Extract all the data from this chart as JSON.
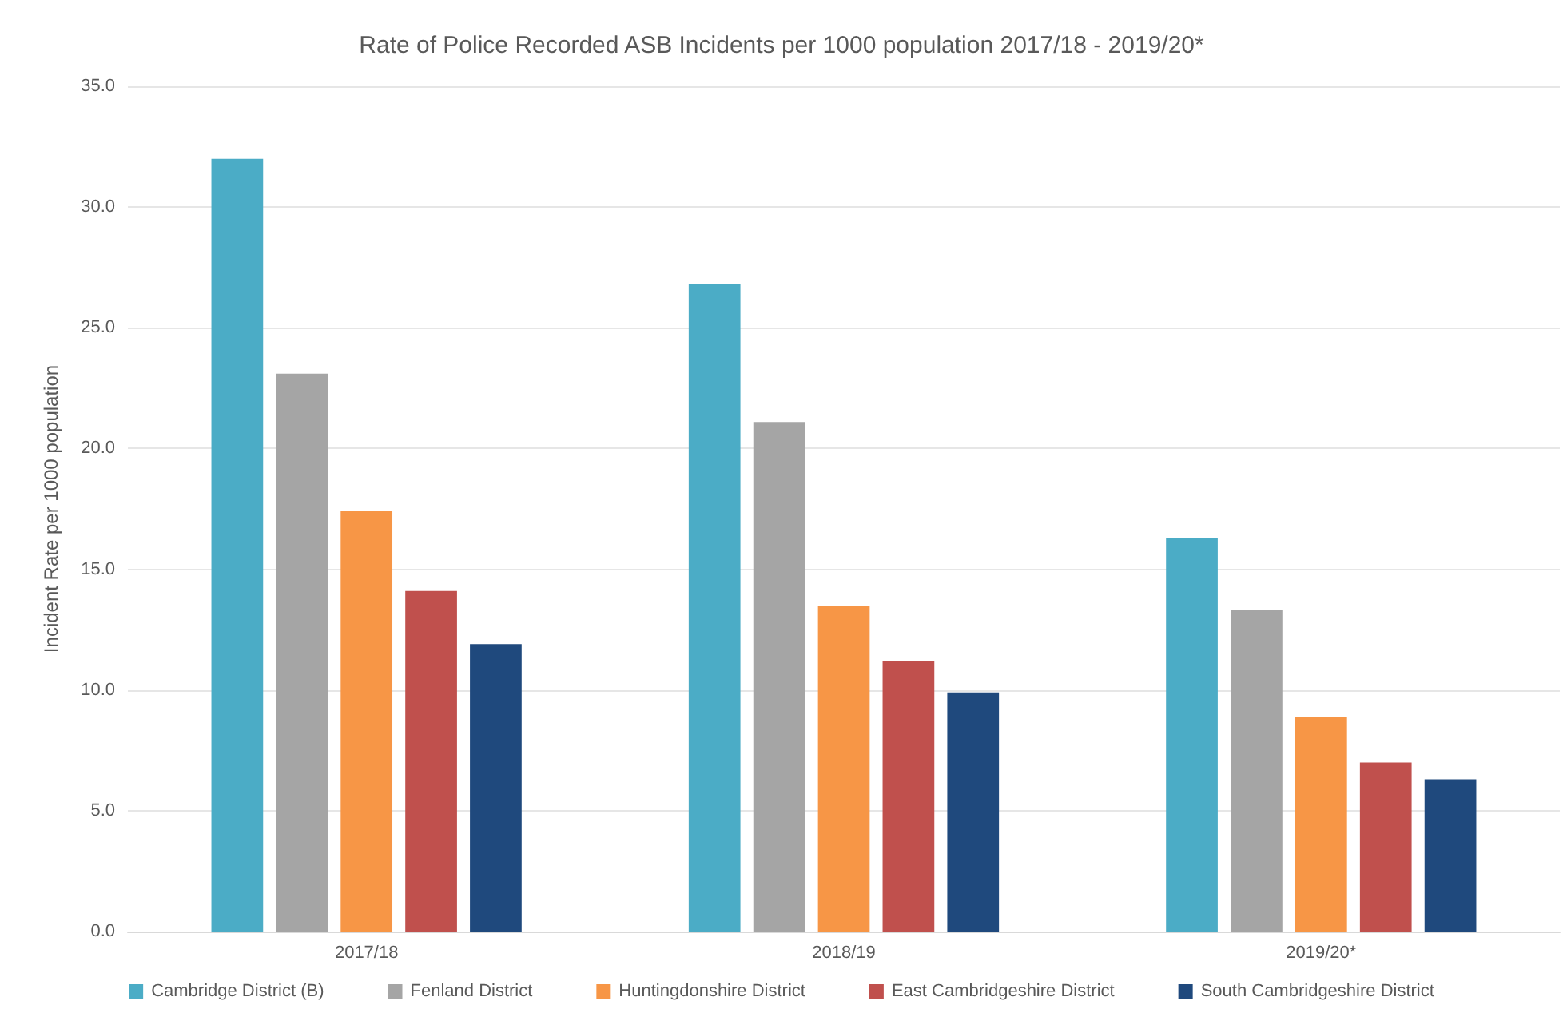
{
  "chart_data": {
    "type": "bar",
    "title": "Rate of Police Recorded ASB Incidents per 1000 population 2017/18 - 2019/20*",
    "ylabel": "Incident Rate per 1000 population",
    "categories": [
      "2017/18",
      "2018/19",
      "2019/20*"
    ],
    "series": [
      {
        "name": "Cambridge District (B)",
        "color": "#4bacc6",
        "values": [
          32.0,
          26.8,
          16.3
        ]
      },
      {
        "name": "Fenland District",
        "color": "#a5a5a5",
        "values": [
          23.1,
          21.1,
          13.3
        ]
      },
      {
        "name": "Huntingdonshire District",
        "color": "#f79646",
        "values": [
          17.4,
          13.5,
          8.9
        ]
      },
      {
        "name": "East Cambridgeshire District",
        "color": "#c0504d",
        "values": [
          14.1,
          11.2,
          7.0
        ]
      },
      {
        "name": "South Cambridgeshire District",
        "color": "#1f497d",
        "values": [
          11.9,
          9.9,
          6.3
        ]
      }
    ],
    "ylim": [
      0,
      35
    ],
    "yticks": [
      {
        "value": 0,
        "label": "0.0"
      },
      {
        "value": 5,
        "label": "5.0"
      },
      {
        "value": 10,
        "label": "10.0"
      },
      {
        "value": 15,
        "label": "15.0"
      },
      {
        "value": 20,
        "label": "20.0"
      },
      {
        "value": 25,
        "label": "25.0"
      },
      {
        "value": 30,
        "label": "30.0"
      },
      {
        "value": 35,
        "label": "35.0"
      }
    ],
    "grid": "y",
    "legend": "bottom"
  }
}
